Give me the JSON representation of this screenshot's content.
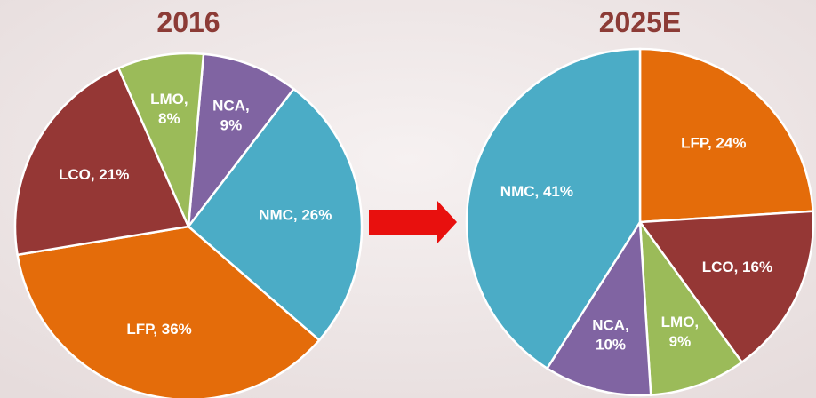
{
  "chart_data": [
    {
      "type": "pie",
      "title": "2016",
      "categories": [
        "NCA",
        "NMC",
        "LFP",
        "LCO",
        "LMO"
      ],
      "values": [
        9,
        26,
        36,
        21,
        8
      ],
      "value_labels": [
        "NCA, 9%",
        "NMC, 26%",
        "LFP, 36%",
        "LCO, 21%",
        "LMO, 8%"
      ],
      "colors": [
        "#8064a2",
        "#4bacc6",
        "#e46c0a",
        "#953735",
        "#9bbb59"
      ]
    },
    {
      "type": "pie",
      "title": "2025E",
      "categories": [
        "LFP",
        "LCO",
        "LMO",
        "NCA",
        "NMC"
      ],
      "values": [
        24,
        16,
        9,
        10,
        41
      ],
      "value_labels": [
        "LFP, 24%",
        "LCO, 16%",
        "LMO, 9%",
        "NCA, 10%",
        "NMC, 41%"
      ],
      "colors": [
        "#e46c0a",
        "#953735",
        "#9bbb59",
        "#8064a2",
        "#4bacc6"
      ]
    }
  ]
}
